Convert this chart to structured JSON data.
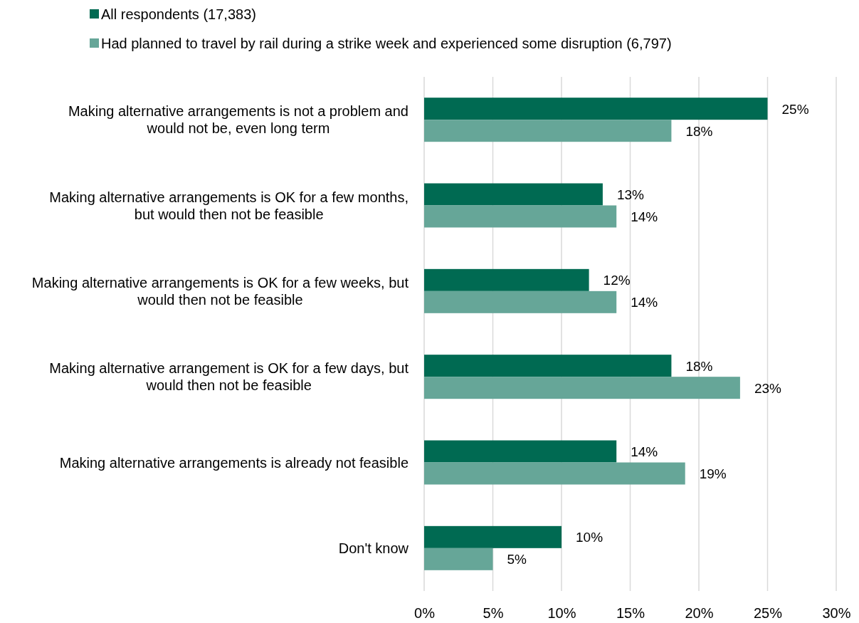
{
  "chart_data": {
    "type": "bar",
    "orientation": "horizontal",
    "categories": [
      "Making alternative arrangements is not a problem and would not be, even long term",
      "Making alternative arrangements is OK for a few months, but would then not be feasible",
      "Making alternative arrangements is OK for a few weeks, but would then not be feasible",
      "Making alternative arrangement is OK for a few days, but would then not be feasible",
      "Making alternative arrangements is already not feasible",
      "Don't know"
    ],
    "series": [
      {
        "name": "All respondents (17,383)",
        "color": "#006a52",
        "values": [
          25,
          13,
          12,
          18,
          14,
          10
        ],
        "value_labels": [
          "25%",
          "13%",
          "12%",
          "18%",
          "14%",
          "10%"
        ]
      },
      {
        "name": "Had planned to travel by rail during a strike week and experienced some disruption (6,797)",
        "color": "#66a698",
        "values": [
          18,
          14,
          14,
          23,
          19,
          5
        ],
        "value_labels": [
          "18%",
          "14%",
          "14%",
          "23%",
          "19%",
          "5%"
        ]
      }
    ],
    "xlim": [
      0,
      30
    ],
    "xticks": [
      {
        "value": 0,
        "label": "0%"
      },
      {
        "value": 5,
        "label": "5%"
      },
      {
        "value": 10,
        "label": "10%"
      },
      {
        "value": 15,
        "label": "15%"
      },
      {
        "value": 20,
        "label": "20%"
      },
      {
        "value": 25,
        "label": "25%"
      },
      {
        "value": 30,
        "label": "30%"
      }
    ],
    "grid": "x",
    "legend": "top left"
  }
}
